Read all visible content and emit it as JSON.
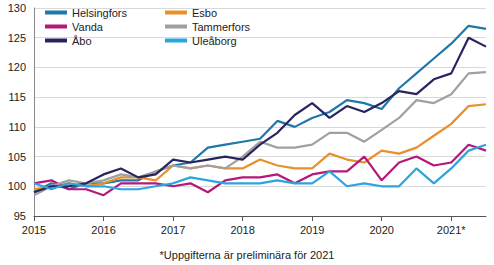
{
  "chart_data": {
    "type": "line",
    "footnote": "*Uppgifterna är preliminära för 2021",
    "categories": [
      "2015",
      null,
      null,
      null,
      "2016",
      null,
      null,
      null,
      "2017",
      null,
      null,
      null,
      "2018",
      null,
      null,
      null,
      "2019",
      null,
      null,
      null,
      "2020",
      null,
      null,
      null,
      "2021*",
      null,
      null
    ],
    "ylim": [
      95,
      130
    ],
    "yticks": [
      95,
      100,
      105,
      110,
      115,
      120,
      125,
      130
    ],
    "grid": true,
    "legend": "upper left",
    "series": [
      {
        "name": "Helsingfors",
        "color": "#1f78a8",
        "values": [
          99,
          100.5,
          99.5,
          100.5,
          100.5,
          101,
          101,
          102.5,
          103.5,
          104,
          106.5,
          107,
          107.5,
          108,
          111,
          110,
          111.5,
          112.5,
          114.5,
          114,
          113,
          116.5,
          119,
          121.5,
          124,
          127,
          126.5
        ]
      },
      {
        "name": "Esbo",
        "color": "#e8902a",
        "values": [
          99.5,
          100,
          100.5,
          100,
          100.5,
          101.5,
          101.5,
          101,
          103.5,
          103,
          103.5,
          103,
          103,
          104.5,
          103.5,
          103,
          103,
          105.5,
          104.5,
          104,
          106,
          105.5,
          106.5,
          108.5,
          110.5,
          113.5,
          113.8
        ]
      },
      {
        "name": "Vanda",
        "color": "#b5177a",
        "values": [
          100.5,
          101,
          99.5,
          99.5,
          98.5,
          100.5,
          100.5,
          100.5,
          100,
          100.5,
          99,
          101,
          101.5,
          101.5,
          102,
          100.5,
          102,
          102.5,
          102.5,
          105,
          101,
          104,
          105,
          103.5,
          104,
          107,
          106
        ]
      },
      {
        "name": "Tammerfors",
        "color": "#a0a0a0",
        "values": [
          98.5,
          100,
          101,
          100.5,
          101,
          102,
          101.5,
          102.5,
          103.5,
          103,
          103.5,
          103,
          105,
          107.5,
          106.5,
          106.5,
          107,
          109,
          109,
          107.5,
          109.5,
          111.5,
          114.5,
          114,
          115.5,
          119,
          119.2
        ]
      },
      {
        "name": "Åbo",
        "color": "#27245f",
        "values": [
          99,
          100,
          100,
          100.5,
          102,
          103,
          101.5,
          102,
          104.5,
          104,
          104.5,
          105,
          104.5,
          107,
          109,
          112,
          114,
          111.5,
          113.5,
          112.5,
          114,
          116,
          115.5,
          118,
          119,
          125,
          123.5
        ]
      },
      {
        "name": "Uleåborg",
        "color": "#2aa5e0",
        "values": [
          100.5,
          99.5,
          100.5,
          100,
          100,
          99.5,
          99.5,
          100,
          100.5,
          101.5,
          101,
          100.5,
          100.5,
          100.5,
          101,
          100.5,
          100.5,
          102.5,
          100,
          100.5,
          100,
          100,
          103,
          100.5,
          103,
          106,
          107
        ]
      }
    ]
  }
}
